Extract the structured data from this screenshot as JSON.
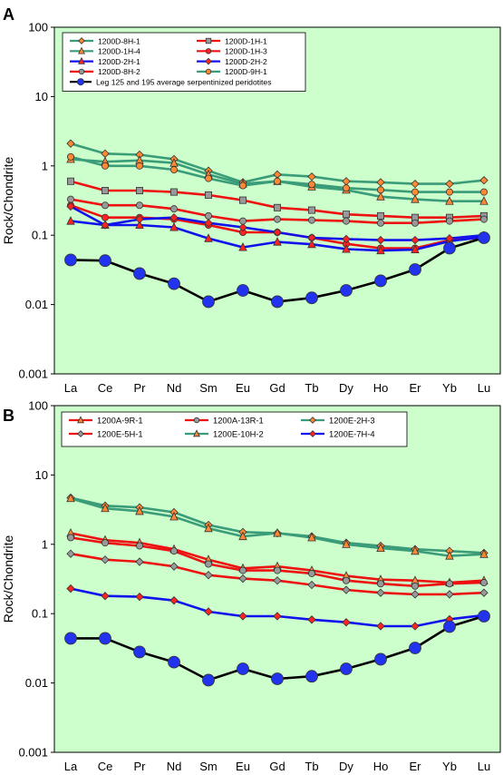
{
  "figure": {
    "colors": {
      "plot_bg": "#ccffcc",
      "green_line": "#3a9c78",
      "red_line": "#ee1111",
      "blue_line": "#1111ee",
      "black_line": "#000000",
      "gray_fill": "#999999",
      "orange_fill": "#ff8833",
      "red_fill": "#ff2222",
      "blue_fill": "#2233ee"
    }
  },
  "chart_data": [
    {
      "panel_label": "A",
      "type": "line",
      "ylabel": "Rock/Chondrite",
      "yscale": "log",
      "ylim": [
        0.001,
        100
      ],
      "yticks": [
        "100",
        "10",
        "1",
        "0.1",
        "0.01",
        "0.001"
      ],
      "categories": [
        "La",
        "Ce",
        "Pr",
        "Nd",
        "Sm",
        "Eu",
        "Gd",
        "Tb",
        "Dy",
        "Ho",
        "Er",
        "Yb",
        "Lu"
      ],
      "legend_placement": "top-left",
      "series": [
        {
          "name": "1200D-8H-1",
          "line": "green",
          "marker": "diamond",
          "fill": "orange",
          "values": [
            2.1,
            1.5,
            1.45,
            1.25,
            0.85,
            0.58,
            0.75,
            0.7,
            0.6,
            0.58,
            0.55,
            0.55,
            0.62
          ]
        },
        {
          "name": "1200D-1H-1",
          "line": "red",
          "marker": "square",
          "fill": "gray",
          "values": [
            0.6,
            0.44,
            0.44,
            0.42,
            0.38,
            0.32,
            0.25,
            0.23,
            0.2,
            0.19,
            0.18,
            0.18,
            0.19
          ]
        },
        {
          "name": "1200D-1H-4",
          "line": "green",
          "marker": "triangle",
          "fill": "orange",
          "values": [
            1.25,
            1.15,
            1.2,
            1.1,
            0.75,
            0.55,
            0.6,
            0.5,
            0.45,
            0.36,
            0.33,
            0.31,
            0.31
          ]
        },
        {
          "name": "1200D-1H-3",
          "line": "red",
          "marker": "circle",
          "fill": "red",
          "values": [
            0.27,
            0.18,
            0.18,
            0.17,
            0.14,
            0.11,
            0.11,
            0.092,
            0.075,
            0.065,
            0.065,
            0.085,
            0.092
          ]
        },
        {
          "name": "1200D-2H-1",
          "line": "blue",
          "marker": "triangle",
          "fill": "red",
          "values": [
            0.16,
            0.14,
            0.14,
            0.13,
            0.09,
            0.067,
            0.08,
            0.074,
            0.063,
            0.06,
            0.062,
            0.082,
            0.095
          ]
        },
        {
          "name": "1200D-2H-2",
          "line": "blue",
          "marker": "diamond",
          "fill": "red",
          "values": [
            0.26,
            0.14,
            0.17,
            0.18,
            0.15,
            0.13,
            0.11,
            0.092,
            0.088,
            0.085,
            0.085,
            0.09,
            0.1
          ]
        },
        {
          "name": "1200D-8H-2",
          "line": "red",
          "marker": "circle",
          "fill": "gray",
          "values": [
            0.33,
            0.27,
            0.27,
            0.24,
            0.19,
            0.16,
            0.17,
            0.165,
            0.16,
            0.15,
            0.15,
            0.16,
            0.17
          ]
        },
        {
          "name": "1200D-9H-1",
          "line": "green",
          "marker": "circle",
          "fill": "orange",
          "values": [
            1.35,
            1.0,
            1.0,
            0.88,
            0.66,
            0.52,
            0.6,
            0.54,
            0.48,
            0.45,
            0.42,
            0.42,
            0.42
          ]
        },
        {
          "name": "Leg 125 and 195 average serpentinized peridotites",
          "line": "black",
          "marker": "circle",
          "fill": "blue",
          "big": true,
          "values": [
            0.044,
            0.043,
            0.028,
            0.02,
            0.011,
            0.016,
            0.011,
            0.0125,
            0.016,
            0.022,
            0.032,
            0.065,
            0.092
          ]
        }
      ]
    },
    {
      "panel_label": "B",
      "type": "line",
      "ylabel": "Rock/Chondrite",
      "yscale": "log",
      "ylim": [
        0.001,
        100
      ],
      "yticks": [
        "100",
        "10",
        "1",
        "0.1",
        "0.01",
        "0.001"
      ],
      "categories": [
        "La",
        "Ce",
        "Pr",
        "Nd",
        "Sm",
        "Eu",
        "Gd",
        "Tb",
        "Dy",
        "Ho",
        "Er",
        "Yb",
        "Lu"
      ],
      "legend_placement": "top-left",
      "series": [
        {
          "name": "1200A-9R-1",
          "line": "red",
          "marker": "triangle",
          "fill": "orange",
          "values": [
            1.45,
            1.15,
            1.05,
            0.85,
            0.6,
            0.45,
            0.48,
            0.42,
            0.35,
            0.31,
            0.3,
            0.28,
            0.3
          ]
        },
        {
          "name": "1200A-13R-1",
          "line": "red",
          "marker": "circle",
          "fill": "gray",
          "values": [
            1.25,
            1.05,
            0.95,
            0.8,
            0.52,
            0.42,
            0.42,
            0.38,
            0.3,
            0.27,
            0.25,
            0.27,
            0.28
          ]
        },
        {
          "name": "1200E-2H-3",
          "line": "green",
          "marker": "diamond",
          "fill": "orange",
          "values": [
            4.7,
            3.6,
            3.4,
            2.9,
            1.9,
            1.5,
            1.45,
            1.3,
            1.05,
            0.95,
            0.85,
            0.8,
            0.75
          ]
        },
        {
          "name": "1200E-5H-1",
          "line": "red",
          "marker": "diamond",
          "fill": "gray",
          "values": [
            0.73,
            0.6,
            0.56,
            0.48,
            0.36,
            0.32,
            0.3,
            0.26,
            0.22,
            0.2,
            0.19,
            0.19,
            0.2
          ]
        },
        {
          "name": "1200E-10H-2",
          "line": "green",
          "marker": "triangle",
          "fill": "orange",
          "values": [
            4.6,
            3.3,
            3.0,
            2.5,
            1.7,
            1.3,
            1.45,
            1.25,
            1.0,
            0.88,
            0.8,
            0.68,
            0.72
          ]
        },
        {
          "name": "1200E-7H-4",
          "line": "blue",
          "marker": "diamond",
          "fill": "red",
          "values": [
            0.23,
            0.18,
            0.175,
            0.155,
            0.107,
            0.092,
            0.092,
            0.082,
            0.075,
            0.066,
            0.066,
            0.083,
            0.095
          ]
        },
        {
          "name": "",
          "line": "black",
          "marker": "circle",
          "fill": "blue",
          "big": true,
          "values": [
            0.044,
            0.044,
            0.028,
            0.02,
            0.011,
            0.016,
            0.0115,
            0.0125,
            0.016,
            0.022,
            0.032,
            0.065,
            0.092
          ]
        }
      ]
    }
  ]
}
